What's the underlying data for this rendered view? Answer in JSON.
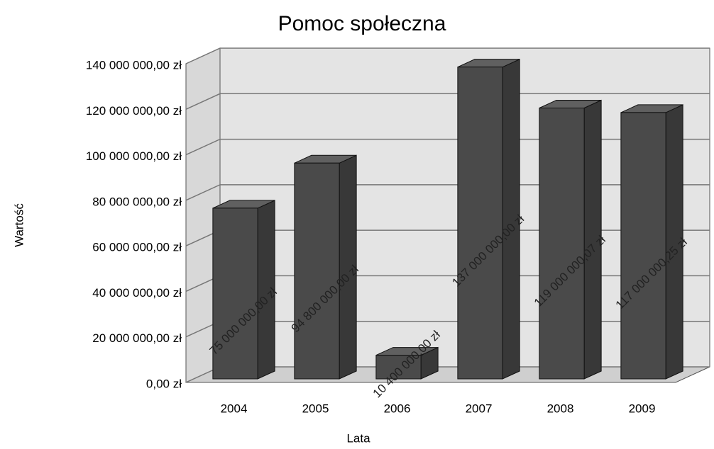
{
  "chart_data": {
    "type": "bar3d",
    "title": "Pomoc społeczna",
    "x_label": "Lata",
    "y_label": "Wartość",
    "categories": [
      "2004",
      "2005",
      "2006",
      "2007",
      "2008",
      "2009"
    ],
    "values": [
      75000000,
      94800000,
      10400000,
      137000000,
      119000000.07,
      117000000.25
    ],
    "value_labels": [
      "75 000 000,00 zł",
      "94 800 000,00 zł",
      "10 400 000,00 zł",
      "137 000 000,00 zł",
      "119 000 000,07 zł",
      "117 000 000,25 zł"
    ],
    "color": "#4a4a4a",
    "ylim": [
      0,
      140000000
    ],
    "yticks": [
      {
        "value": 0,
        "label": "0,00 zł"
      },
      {
        "value": 20000000,
        "label": "20 000 000,00 zł"
      },
      {
        "value": 40000000,
        "label": "40 000 000,00 zł"
      },
      {
        "value": 60000000,
        "label": "60 000 000,00 zł"
      },
      {
        "value": 80000000,
        "label": "80 000 000,00 zł"
      },
      {
        "value": 100000000,
        "label": "100 000 000,00 zł"
      },
      {
        "value": 120000000,
        "label": "120 000 000,00 zł"
      },
      {
        "value": 140000000,
        "label": "140 000 000,00 zł"
      }
    ],
    "grid": true
  }
}
